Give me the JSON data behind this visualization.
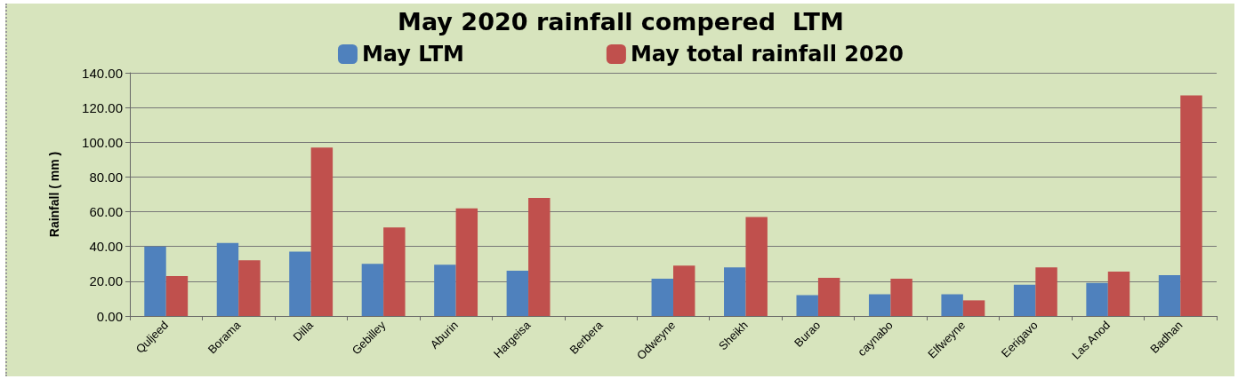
{
  "chart_data": {
    "type": "bar",
    "title": "May 2020 rainfall compered  LTM",
    "ylabel": "Rainfall ( mm )",
    "categories": [
      "Quljeed",
      "Borama",
      "Dilla",
      "Gebilley",
      "Aburin",
      "Hargeisa",
      "Berbera",
      "Odweyne",
      "Sheikh",
      "Burao",
      "caynabo",
      "Elfweyne",
      "Eerigavo",
      "Las Anod",
      "Badhan"
    ],
    "series": [
      {
        "name": "May LTM",
        "color": "#4f81bd",
        "values": [
          40,
          42,
          37,
          30,
          29.5,
          26,
          null,
          21.5,
          28,
          12,
          12.5,
          12.5,
          18,
          19,
          23.5
        ]
      },
      {
        "name": "May total rainfall 2020",
        "color": "#c0504d",
        "values": [
          23,
          32,
          97,
          51,
          62,
          68,
          null,
          29,
          57,
          22,
          21.5,
          9,
          28,
          25.5,
          127
        ]
      }
    ],
    "ylim": [
      0,
      140
    ],
    "yticks": [
      {
        "value": 0,
        "label": "0.00"
      },
      {
        "value": 20,
        "label": "20.00"
      },
      {
        "value": 40,
        "label": "40.00"
      },
      {
        "value": 60,
        "label": "60.00"
      },
      {
        "value": 80,
        "label": "80.00"
      },
      {
        "value": 100,
        "label": "100.00"
      },
      {
        "value": 120,
        "label": "120.00"
      },
      {
        "value": 140,
        "label": "140.00"
      }
    ],
    "grid": "y",
    "legend": "top"
  }
}
